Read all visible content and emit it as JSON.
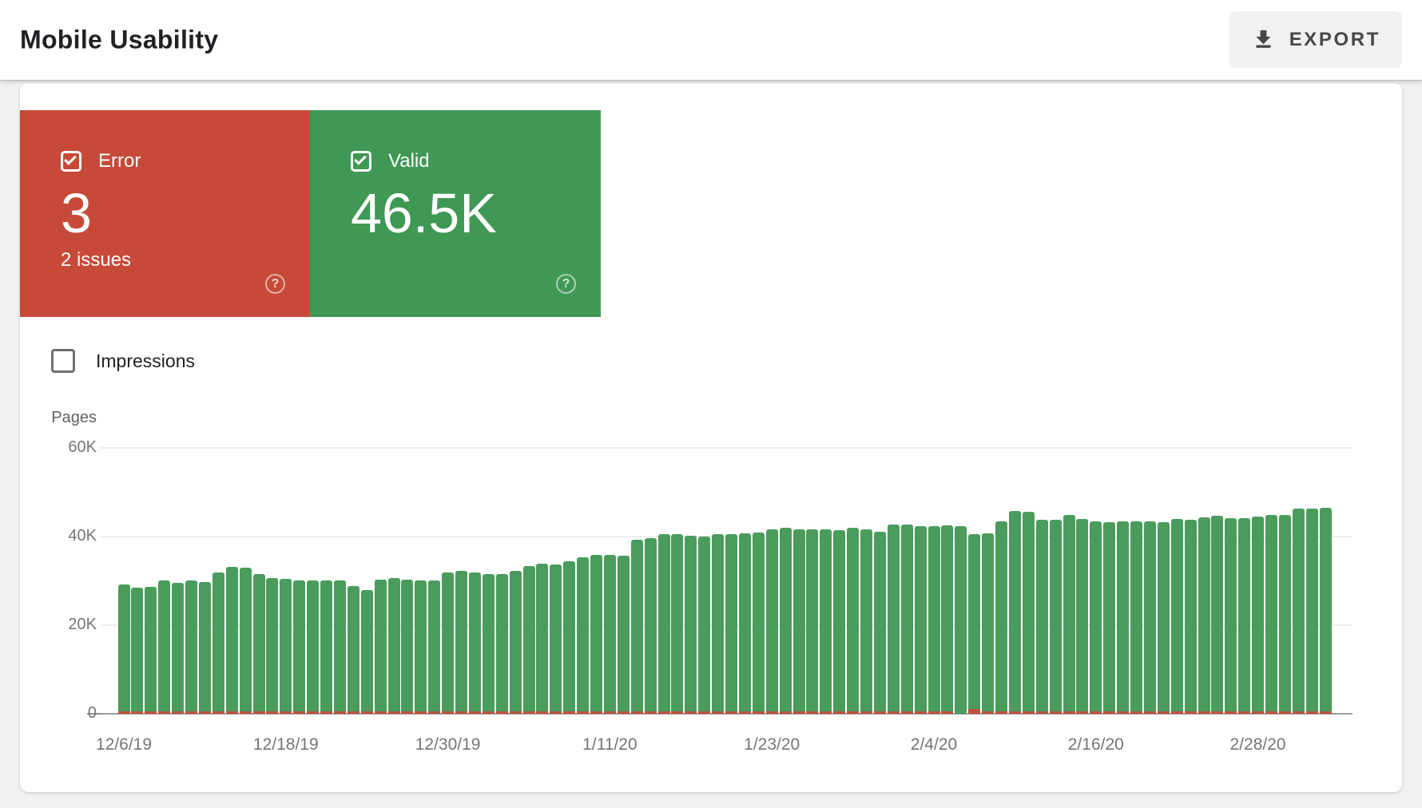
{
  "header": {
    "title": "Mobile Usability",
    "export_label": "EXPORT"
  },
  "summary_cards": {
    "error": {
      "label": "Error",
      "value": "3",
      "sub": "2 issues",
      "checked": true,
      "color": "#c74a38"
    },
    "valid": {
      "label": "Valid",
      "value": "46.5K",
      "checked": true,
      "color": "#3f9854"
    }
  },
  "controls": {
    "impressions_label": "Impressions",
    "impressions_checked": false
  },
  "chart_data": {
    "type": "bar",
    "ylabel": "Pages",
    "ylim": [
      0,
      60000
    ],
    "grid": true,
    "y_ticks": [
      {
        "value": 0,
        "label": "0"
      },
      {
        "value": 20000,
        "label": "20K"
      },
      {
        "value": 40000,
        "label": "40K"
      },
      {
        "value": 60000,
        "label": "60K"
      }
    ],
    "x_start": "12/6/19",
    "x_tick_step": 12,
    "x_tick_labels": [
      "12/6/19",
      "12/18/19",
      "12/30/19",
      "1/11/20",
      "1/23/20",
      "2/4/20",
      "2/16/20",
      "2/28/20"
    ],
    "series": [
      {
        "name": "Valid",
        "color": "#4a9c5c",
        "values": [
          29200,
          28400,
          28700,
          30000,
          29600,
          30000,
          29800,
          31900,
          33200,
          33000,
          31500,
          30700,
          30500,
          30100,
          30100,
          30100,
          30100,
          28900,
          28000,
          30300,
          30600,
          30300,
          30100,
          30100,
          31900,
          32300,
          31900,
          31500,
          31500,
          32300,
          33400,
          33900,
          33700,
          34400,
          35300,
          35900,
          35900,
          35700,
          39300,
          39600,
          40500,
          40500,
          40100,
          40000,
          40500,
          40500,
          40700,
          40900,
          41600,
          42000,
          41600,
          41600,
          41600,
          41500,
          42000,
          41700,
          41000,
          42700,
          42700,
          42300,
          42400,
          42500,
          41900,
          40500,
          40800,
          43400,
          45700,
          45600,
          43700,
          43800,
          44900,
          44000,
          43500,
          43200,
          43400,
          43400,
          43400,
          43300,
          43900,
          43800,
          44300,
          44600,
          44200,
          44100,
          44500,
          44900,
          44800,
          46300,
          46300,
          46500
        ]
      },
      {
        "name": "Error",
        "color": "#c0503c",
        "constant_value": 3,
        "zero_index": 62,
        "spike_index": 63
      }
    ]
  }
}
